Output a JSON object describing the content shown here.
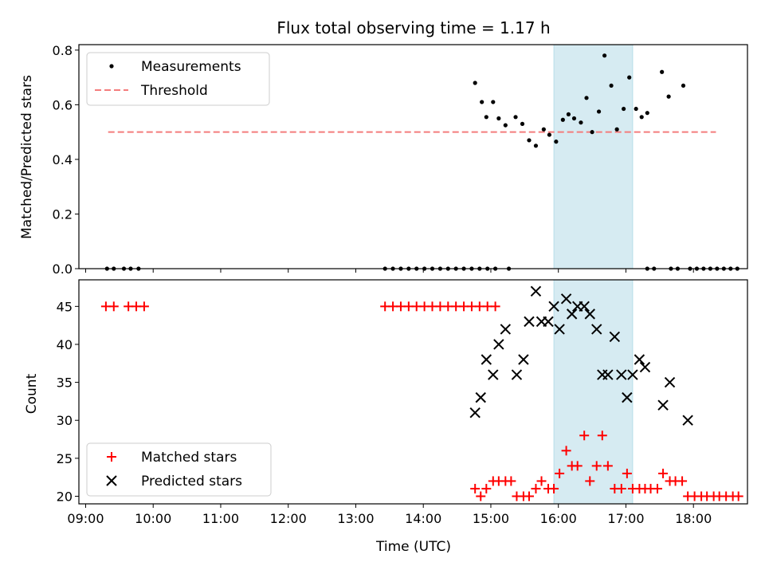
{
  "chart_data": [
    {
      "type": "scatter",
      "title": "Flux total observing time = 1.17 h",
      "xlabel": "",
      "ylabel": "Matched/Predicted stars",
      "x_range": [
        "08:54",
        "18:48"
      ],
      "ylim": [
        0,
        0.82
      ],
      "yticks": [
        "0.0",
        "0.2",
        "0.4",
        "0.6",
        "0.8"
      ],
      "highlight_span": [
        "15:56",
        "17:06"
      ],
      "grid": false,
      "legend_position": "top-left",
      "threshold": {
        "name": "Threshold",
        "value": 0.5,
        "x_start": "09:20",
        "x_end": "18:20",
        "color": "#f47c7c"
      },
      "series": [
        {
          "name": "Measurements",
          "color": "#000000",
          "points": [
            [
              "09:19",
              0
            ],
            [
              "09:25",
              0
            ],
            [
              "09:34",
              0
            ],
            [
              "09:40",
              0
            ],
            [
              "09:47",
              0
            ],
            [
              "13:26",
              0
            ],
            [
              "13:33",
              0
            ],
            [
              "13:40",
              0
            ],
            [
              "13:47",
              0
            ],
            [
              "13:54",
              0
            ],
            [
              "14:01",
              0
            ],
            [
              "14:08",
              0
            ],
            [
              "14:15",
              0
            ],
            [
              "14:22",
              0
            ],
            [
              "14:29",
              0
            ],
            [
              "14:36",
              0
            ],
            [
              "14:43",
              0
            ],
            [
              "14:50",
              0
            ],
            [
              "14:57",
              0
            ],
            [
              "15:04",
              0
            ],
            [
              "14:46",
              0.68
            ],
            [
              "14:52",
              0.61
            ],
            [
              "14:56",
              0.555
            ],
            [
              "15:02",
              0.61
            ],
            [
              "15:07",
              0.55
            ],
            [
              "15:13",
              0.525
            ],
            [
              "15:16",
              0
            ],
            [
              "15:22",
              0.555
            ],
            [
              "15:28",
              0.53
            ],
            [
              "15:34",
              0.47
            ],
            [
              "15:40",
              0.45
            ],
            [
              "15:47",
              0.51
            ],
            [
              "15:52",
              0.49
            ],
            [
              "15:58",
              0.465
            ],
            [
              "16:04",
              0.545
            ],
            [
              "16:09",
              0.565
            ],
            [
              "16:14",
              0.55
            ],
            [
              "16:20",
              0.535
            ],
            [
              "16:25",
              0.625
            ],
            [
              "16:30",
              0.5
            ],
            [
              "16:36",
              0.575
            ],
            [
              "16:41",
              0.78
            ],
            [
              "16:47",
              0.67
            ],
            [
              "16:52",
              0.51
            ],
            [
              "16:58",
              0.585
            ],
            [
              "17:03",
              0.7
            ],
            [
              "17:09",
              0.585
            ],
            [
              "17:14",
              0.555
            ],
            [
              "17:19",
              0.57
            ],
            [
              "17:19",
              0
            ],
            [
              "17:25",
              0
            ],
            [
              "17:32",
              0.72
            ],
            [
              "17:38",
              0.63
            ],
            [
              "17:40",
              0
            ],
            [
              "17:46",
              0
            ],
            [
              "17:51",
              0.67
            ],
            [
              "17:57",
              0
            ],
            [
              "18:03",
              0
            ],
            [
              "18:09",
              0
            ],
            [
              "18:15",
              0
            ],
            [
              "18:21",
              0
            ],
            [
              "18:27",
              0
            ],
            [
              "18:33",
              0
            ],
            [
              "18:39",
              0
            ]
          ]
        }
      ]
    },
    {
      "type": "scatter",
      "title": "",
      "xlabel": "Time (UTC)",
      "ylabel": "Count",
      "x_range": [
        "08:54",
        "18:48"
      ],
      "ylim": [
        19,
        48.5
      ],
      "yticks": [
        "20",
        "25",
        "30",
        "35",
        "40",
        "45"
      ],
      "xticks": [
        "09:00",
        "10:00",
        "11:00",
        "12:00",
        "13:00",
        "14:00",
        "15:00",
        "16:00",
        "17:00",
        "18:00"
      ],
      "highlight_span": [
        "15:56",
        "17:06"
      ],
      "grid": false,
      "legend_position": "bottom-left",
      "series": [
        {
          "name": "Matched stars",
          "marker": "plus",
          "color": "#ff0000",
          "points": [
            [
              "09:18",
              45
            ],
            [
              "09:25",
              45
            ],
            [
              "09:38",
              45
            ],
            [
              "09:45",
              45
            ],
            [
              "09:52",
              45
            ],
            [
              "13:26",
              45
            ],
            [
              "13:33",
              45
            ],
            [
              "13:40",
              45
            ],
            [
              "13:47",
              45
            ],
            [
              "13:54",
              45
            ],
            [
              "14:01",
              45
            ],
            [
              "14:08",
              45
            ],
            [
              "14:15",
              45
            ],
            [
              "14:22",
              45
            ],
            [
              "14:29",
              45
            ],
            [
              "14:36",
              45
            ],
            [
              "14:43",
              45
            ],
            [
              "14:50",
              45
            ],
            [
              "14:57",
              45
            ],
            [
              "15:04",
              45
            ],
            [
              "14:46",
              21
            ],
            [
              "14:51",
              20
            ],
            [
              "14:56",
              21
            ],
            [
              "15:02",
              22
            ],
            [
              "15:07",
              22
            ],
            [
              "15:13",
              22
            ],
            [
              "15:18",
              22
            ],
            [
              "15:23",
              20
            ],
            [
              "15:29",
              20
            ],
            [
              "15:34",
              20
            ],
            [
              "15:40",
              21
            ],
            [
              "15:45",
              22
            ],
            [
              "15:51",
              21
            ],
            [
              "15:56",
              21
            ],
            [
              "16:01",
              23
            ],
            [
              "16:07",
              26
            ],
            [
              "16:12",
              24
            ],
            [
              "16:17",
              24
            ],
            [
              "16:23",
              28
            ],
            [
              "16:28",
              22
            ],
            [
              "16:34",
              24
            ],
            [
              "16:39",
              28
            ],
            [
              "16:44",
              24
            ],
            [
              "16:50",
              21
            ],
            [
              "16:56",
              21
            ],
            [
              "17:01",
              23
            ],
            [
              "17:06",
              21
            ],
            [
              "17:12",
              21
            ],
            [
              "17:17",
              21
            ],
            [
              "17:22",
              21
            ],
            [
              "17:28",
              21
            ],
            [
              "17:33",
              23
            ],
            [
              "17:39",
              22
            ],
            [
              "17:44",
              22
            ],
            [
              "17:50",
              22
            ],
            [
              "17:55",
              20
            ],
            [
              "18:01",
              20
            ],
            [
              "18:07",
              20
            ],
            [
              "18:12",
              20
            ],
            [
              "18:18",
              20
            ],
            [
              "18:23",
              20
            ],
            [
              "18:29",
              20
            ],
            [
              "18:35",
              20
            ],
            [
              "18:40",
              20
            ]
          ]
        },
        {
          "name": "Predicted stars",
          "marker": "x",
          "color": "#000000",
          "points": [
            [
              "14:46",
              31
            ],
            [
              "14:51",
              33
            ],
            [
              "14:56",
              38
            ],
            [
              "15:02",
              36
            ],
            [
              "15:07",
              40
            ],
            [
              "15:13",
              42
            ],
            [
              "15:23",
              36
            ],
            [
              "15:29",
              38
            ],
            [
              "15:34",
              43
            ],
            [
              "15:40",
              47
            ],
            [
              "15:45",
              43
            ],
            [
              "15:51",
              43
            ],
            [
              "15:56",
              45
            ],
            [
              "16:01",
              42
            ],
            [
              "16:07",
              46
            ],
            [
              "16:12",
              44
            ],
            [
              "16:17",
              45
            ],
            [
              "16:23",
              45
            ],
            [
              "16:28",
              44
            ],
            [
              "16:34",
              42
            ],
            [
              "16:39",
              36
            ],
            [
              "16:44",
              36
            ],
            [
              "16:50",
              41
            ],
            [
              "16:56",
              36
            ],
            [
              "17:01",
              33
            ],
            [
              "17:06",
              36
            ],
            [
              "17:12",
              38
            ],
            [
              "17:17",
              37
            ],
            [
              "17:33",
              32
            ],
            [
              "17:39",
              35
            ],
            [
              "17:55",
              30
            ]
          ]
        }
      ]
    }
  ]
}
